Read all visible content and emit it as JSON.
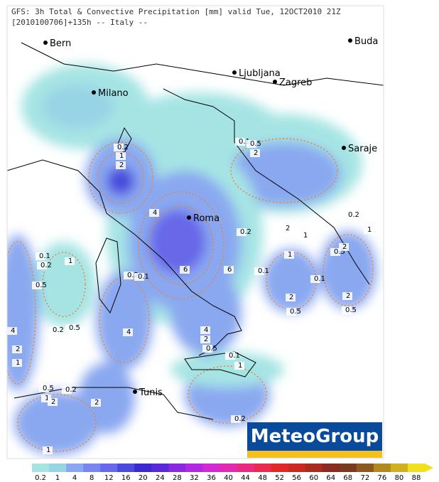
{
  "header": {
    "title": "GFS: 3h Total & Convective Precipitation [mm] valid Tue, 12OCT2010 21Z",
    "subtitle": "[2010100706]+135h -- Italy --"
  },
  "cities": [
    "Bern",
    "Milano",
    "Ljubljana",
    "Zagreb",
    "Buda",
    "Saraje",
    "Roma",
    "Tunis"
  ],
  "contour_labels": [
    "0.2",
    "1",
    "2",
    "4",
    "6",
    "6",
    "0.2",
    "2",
    "1",
    "0.1",
    "0.5",
    "2",
    "0.2",
    "1",
    "0.5",
    "2",
    "0.1",
    "0.1",
    "1",
    "2",
    "0.5",
    "2",
    "0.5",
    "0.1",
    "0.2",
    "1",
    "0.5",
    "0.2",
    "0.1",
    "4",
    "0.2",
    "0.5",
    "4",
    "2",
    "1",
    "4",
    "2",
    "0.5",
    "0.1",
    "1",
    "0.5",
    "0.2",
    "1",
    "2",
    "2",
    "0.2",
    "1"
  ],
  "logo": "MeteoGroup",
  "colorbar": {
    "values": [
      0.2,
      1,
      4,
      8,
      12,
      16,
      20,
      24,
      28,
      32,
      36,
      40,
      44,
      48,
      52,
      56,
      60,
      64,
      68,
      72,
      76,
      80,
      88
    ],
    "colors": [
      "#a6e4e4",
      "#96d4e6",
      "#8aa8f0",
      "#7a86ee",
      "#6868e8",
      "#4a4adc",
      "#3a2ad0",
      "#5a2ad8",
      "#8a2ae0",
      "#b02ae0",
      "#d02ad0",
      "#e02ab0",
      "#e82a80",
      "#e82a50",
      "#e02a2a",
      "#c82a20",
      "#a82a20",
      "#8a2a20",
      "#7a3a20",
      "#8a5a20",
      "#b08a20",
      "#d0b020",
      "#f0e020"
    ]
  }
}
